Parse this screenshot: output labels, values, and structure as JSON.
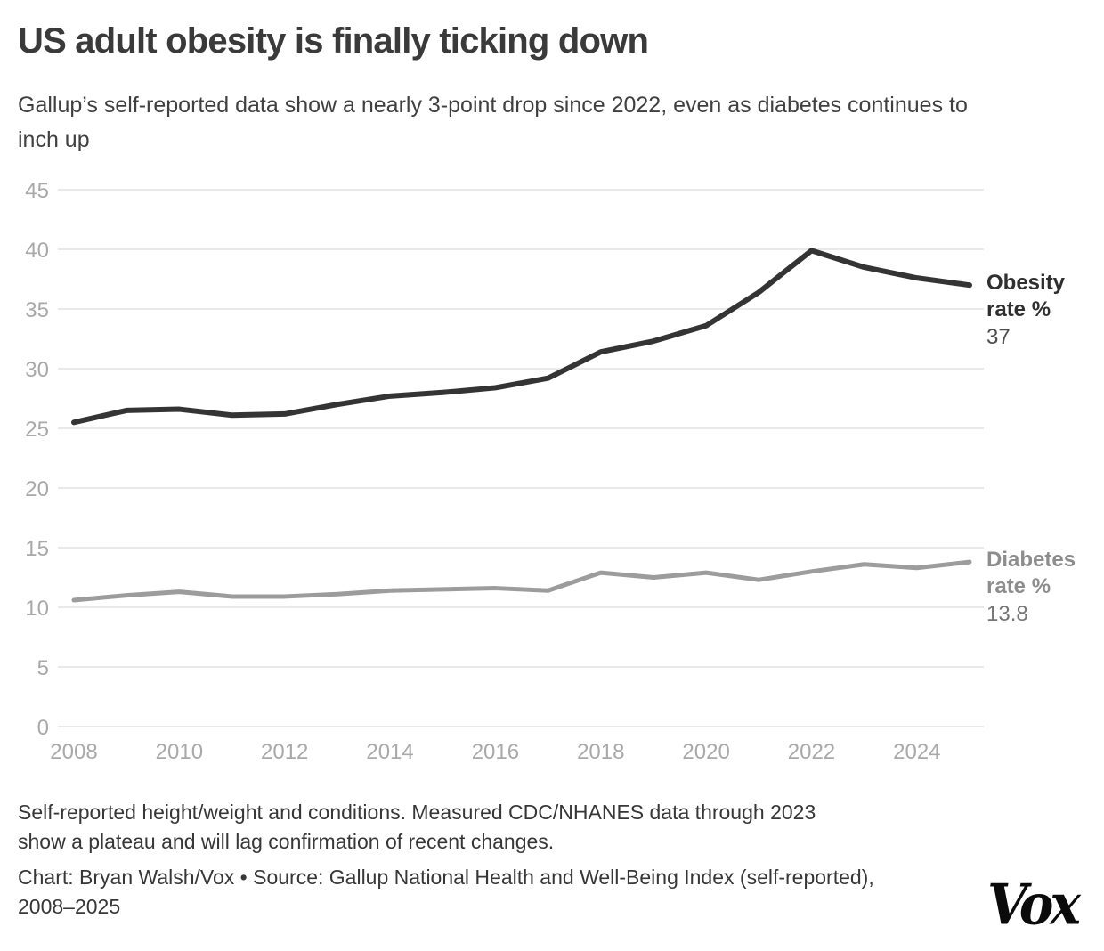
{
  "header": {
    "title": "US adult obesity is finally ticking down",
    "subtitle": "Gallup’s self-reported data show a nearly 3-point drop since 2022, even as diabetes continues to inch up"
  },
  "chart_data": {
    "type": "line",
    "x": [
      2008,
      2009,
      2010,
      2011,
      2012,
      2013,
      2014,
      2015,
      2016,
      2017,
      2018,
      2019,
      2020,
      2021,
      2022,
      2023,
      2024,
      2025
    ],
    "series": [
      {
        "id": "obesity-line",
        "name": "Obesity rate %",
        "values": [
          25.5,
          26.5,
          26.6,
          26.1,
          26.2,
          27.0,
          27.7,
          28.0,
          28.4,
          29.2,
          31.4,
          32.3,
          33.6,
          36.4,
          39.9,
          38.5,
          37.6,
          37.0
        ],
        "color": "#343434",
        "end_label": "Obesity rate %",
        "end_value": "37"
      },
      {
        "id": "diabetes-line",
        "name": "Diabetes rate %",
        "values": [
          10.6,
          11.0,
          11.3,
          10.9,
          10.9,
          11.1,
          11.4,
          11.5,
          11.6,
          11.4,
          12.9,
          12.5,
          12.9,
          12.3,
          13.0,
          13.6,
          13.3,
          13.8
        ],
        "color": "#9c9c9c",
        "end_label": "Diabetes rate %",
        "end_value": "13.8"
      }
    ],
    "xticks": [
      2008,
      2010,
      2012,
      2014,
      2016,
      2018,
      2020,
      2022,
      2024
    ],
    "yticks": [
      0,
      5,
      10,
      15,
      20,
      25,
      30,
      35,
      40,
      45
    ],
    "xlim": [
      2008,
      2025
    ],
    "ylim": [
      0,
      45
    ],
    "grid": "horizontal",
    "legend_position": "right-end-labels",
    "colors": {
      "grid": "#e2e2e2",
      "tick_labels": "#a9a9a9"
    }
  },
  "footer": {
    "note": "Self-reported height/weight and conditions. Measured CDC/NHANES data through 2023 show a plateau and will lag confirmation of recent changes.",
    "credit": "Chart: Bryan Walsh/Vox • Source: Gallup National Health and Well-Being Index (self-reported), 2008–2025",
    "logo_text": "Vox"
  }
}
